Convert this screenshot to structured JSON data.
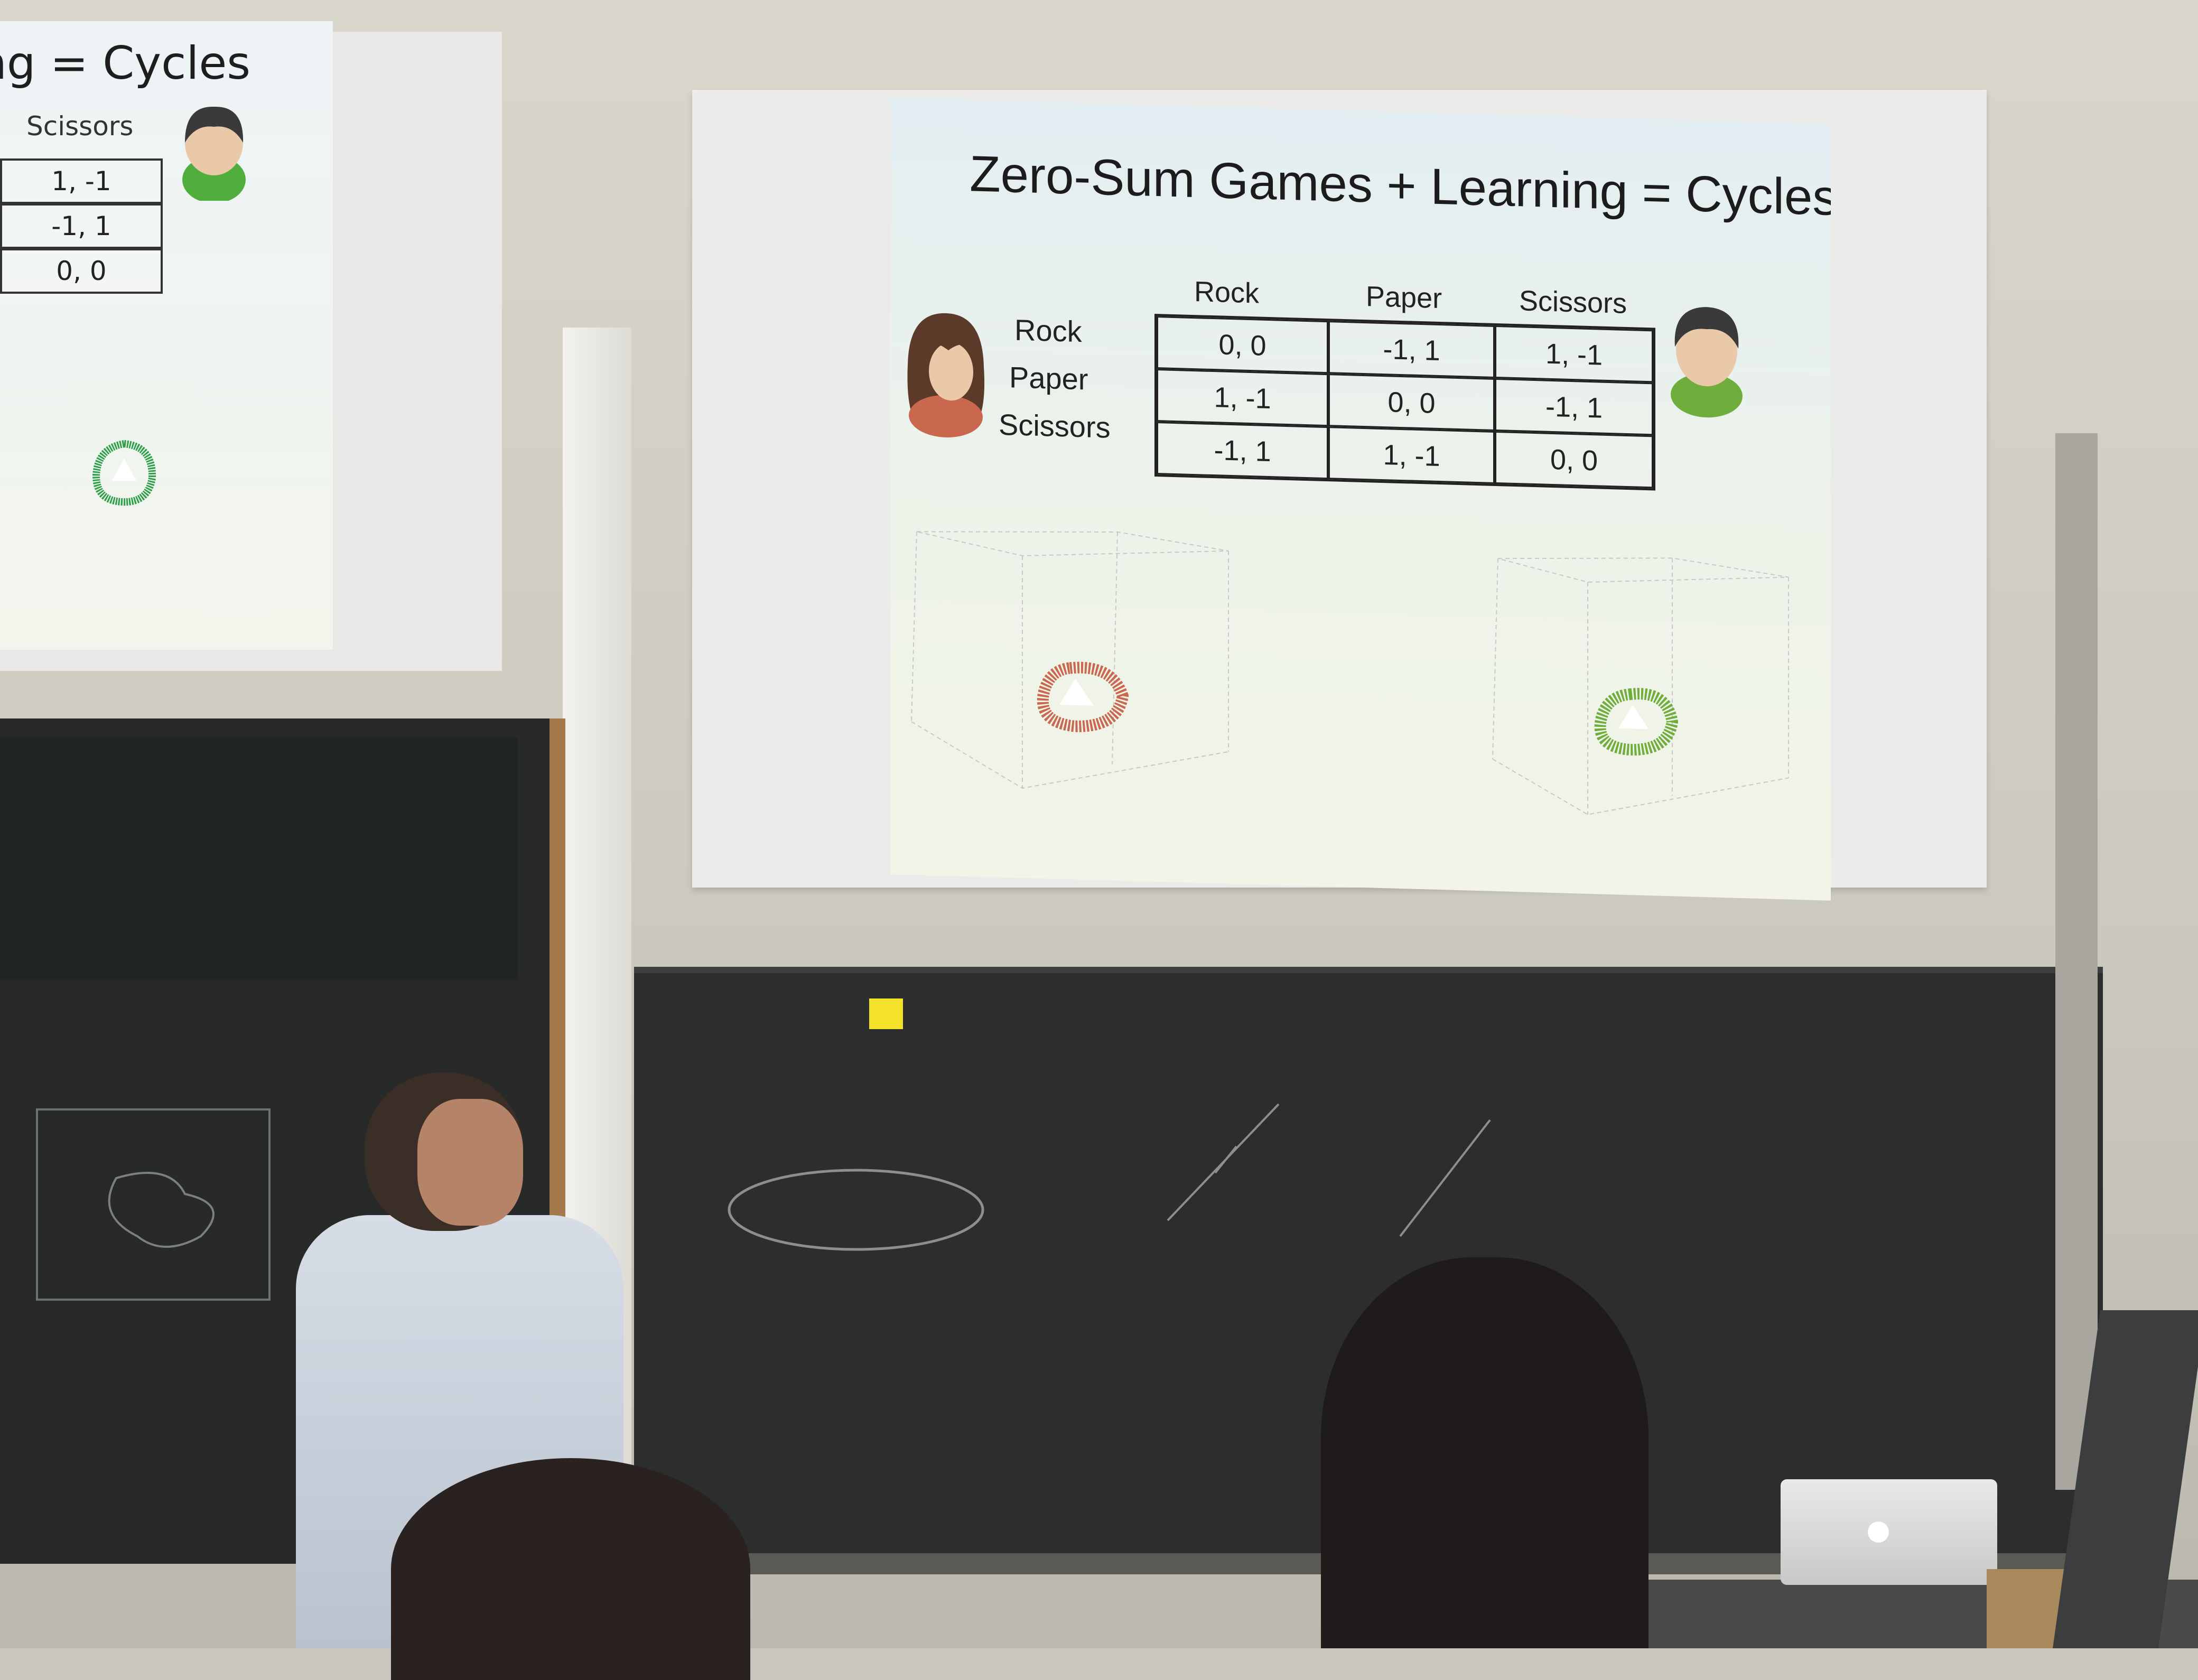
{
  "left_slide": {
    "title_fragment": "ning = Cycles",
    "column_header": "Scissors",
    "cells": [
      "1, -1",
      "-1, 1",
      "0, 0"
    ]
  },
  "slide": {
    "title": "Zero-Sum Games + Learning = Cycles",
    "column_headers": [
      "Rock",
      "Paper",
      "Scissors"
    ],
    "row_headers": [
      "Rock",
      "Paper",
      "Scissors"
    ],
    "matrix": [
      [
        "0, 0",
        "-1, 1",
        "1, -1"
      ],
      [
        "1, -1",
        "0, 0",
        "-1, 1"
      ],
      [
        "-1, 1",
        "1, -1",
        "0, 0"
      ]
    ],
    "left_plot_color": "#c9684f",
    "right_plot_color": "#6fae3c"
  },
  "avatars": {
    "row_player_icon": "female-avatar-icon",
    "column_player_icon": "male-avatar-icon"
  }
}
